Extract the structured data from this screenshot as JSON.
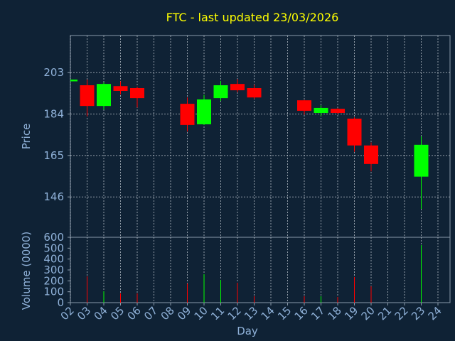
{
  "chart_data": {
    "type": "candlestick",
    "title": "FTC - last updated 23/03/2026",
    "xlabel": "Day",
    "ylabel": "Price",
    "volume_label": "Volume (0000)",
    "categories": [
      "02",
      "03",
      "04",
      "05",
      "06",
      "07",
      "08",
      "09",
      "10",
      "11",
      "12",
      "13",
      "14",
      "15",
      "16",
      "17",
      "18",
      "19",
      "20",
      "21",
      "22",
      "23",
      "24"
    ],
    "open": [
      199.0,
      197.2,
      187.7,
      196.8,
      195.9,
      null,
      null,
      188.7,
      179.3,
      191.3,
      197.8,
      195.9,
      null,
      null,
      190.3,
      184.5,
      186.4,
      181.9,
      169.6,
      null,
      null,
      155.3,
      null
    ],
    "high": [
      200.0,
      199.8,
      198.5,
      199.0,
      196.5,
      null,
      null,
      191.6,
      192.8,
      199.2,
      200.0,
      197.5,
      null,
      null,
      190.5,
      188.0,
      186.7,
      182.5,
      171.0,
      null,
      null,
      173.8,
      null
    ],
    "low": [
      198.8,
      182.9,
      186.0,
      193.0,
      187.0,
      null,
      null,
      176.0,
      179.0,
      190.0,
      194.0,
      191.0,
      null,
      null,
      183.7,
      183.0,
      184.0,
      166.7,
      157.7,
      null,
      null,
      140.5,
      null
    ],
    "close": [
      199.8,
      187.7,
      197.8,
      194.6,
      191.3,
      null,
      null,
      179.0,
      190.7,
      197.2,
      194.9,
      191.6,
      null,
      null,
      185.5,
      186.8,
      184.5,
      169.6,
      161.1,
      null,
      null,
      169.9,
      null
    ],
    "volume": [
      0,
      241,
      104,
      85,
      85,
      null,
      null,
      176,
      261,
      209,
      183,
      59,
      null,
      null,
      59,
      59,
      52,
      235,
      150,
      null,
      null,
      528,
      null
    ],
    "up_color": "#00ff00",
    "down_color": "#ff0000",
    "ylim": [
      127.5,
      220
    ],
    "yticks": [
      146,
      165,
      184,
      203
    ],
    "volume_ylim": [
      0,
      600
    ],
    "volume_yticks": [
      0,
      100,
      200,
      300,
      400,
      500,
      600
    ],
    "grid": true
  }
}
